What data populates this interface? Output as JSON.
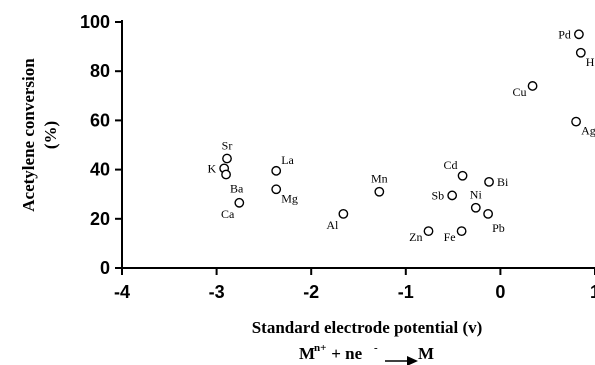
{
  "chart_data": {
    "type": "scatter",
    "xlabel": "Standard electrode potential (v)",
    "ylabel_line1": "Acetylene conversion",
    "ylabel_line2": "(%)",
    "xlim": [
      -4,
      1
    ],
    "ylim": [
      0,
      100
    ],
    "xticks": [
      -4,
      -3,
      -2,
      -1,
      0,
      1
    ],
    "yticks": [
      0,
      20,
      40,
      60,
      80,
      100
    ],
    "xtick_labels": [
      "-4",
      "-3",
      "-2",
      "-1",
      "0",
      "1"
    ],
    "ytick_labels": [
      "0",
      "20",
      "40",
      "60",
      "80",
      "100"
    ],
    "grid": false,
    "points": [
      {
        "label": "Sr",
        "x": -2.89,
        "y": 44.5,
        "anchor": "above"
      },
      {
        "label": "K",
        "x": -2.92,
        "y": 40.5,
        "anchor": "left"
      },
      {
        "label": "Ba",
        "x": -2.9,
        "y": 38.0,
        "anchor": "below"
      },
      {
        "label": "Ca",
        "x": -2.76,
        "y": 26.5,
        "anchor": "below-left"
      },
      {
        "label": "La",
        "x": -2.37,
        "y": 39.5,
        "anchor": "above-right"
      },
      {
        "label": "Mg",
        "x": -2.37,
        "y": 32.0,
        "anchor": "right-below"
      },
      {
        "label": "Al",
        "x": -1.66,
        "y": 22.0,
        "anchor": "below-left"
      },
      {
        "label": "Mn",
        "x": -1.28,
        "y": 31.0,
        "anchor": "above"
      },
      {
        "label": "Zn",
        "x": -0.76,
        "y": 15.0,
        "anchor": "left-below"
      },
      {
        "label": "Fe",
        "x": -0.41,
        "y": 15.0,
        "anchor": "left-below"
      },
      {
        "label": "Cd",
        "x": -0.4,
        "y": 37.5,
        "anchor": "above-left"
      },
      {
        "label": "Sb",
        "x": -0.51,
        "y": 29.5,
        "anchor": "left"
      },
      {
        "label": "Ni",
        "x": -0.26,
        "y": 24.5,
        "anchor": "above"
      },
      {
        "label": "Pb",
        "x": -0.13,
        "y": 22.0,
        "anchor": "below"
      },
      {
        "label": "Bi",
        "x": -0.12,
        "y": 35.0,
        "anchor": "right"
      },
      {
        "label": "Cu",
        "x": 0.34,
        "y": 74.0,
        "anchor": "left-below"
      },
      {
        "label": "Ag",
        "x": 0.8,
        "y": 59.5,
        "anchor": "right-below"
      },
      {
        "label": "Hg",
        "x": 0.85,
        "y": 87.5,
        "anchor": "right-below"
      },
      {
        "label": "Pd",
        "x": 0.83,
        "y": 95.0,
        "anchor": "left"
      }
    ],
    "equation": {
      "base_M": "M",
      "sup_n": "n+",
      "mid": " + ne",
      "sup_minus": "-",
      "result": "M"
    }
  }
}
